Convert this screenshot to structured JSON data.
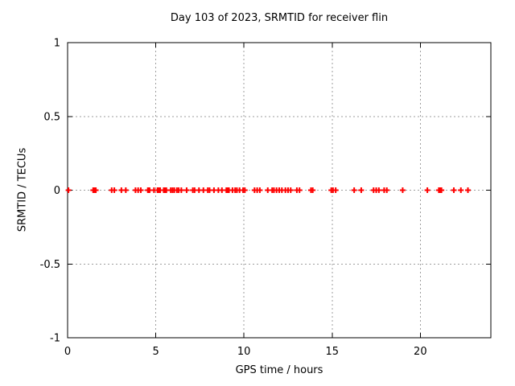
{
  "chart_data": {
    "type": "scatter",
    "title": "Day 103 of 2023, SRMTID for receiver flin",
    "xlabel": "GPS time / hours",
    "ylabel": "SRMTID / TECUs",
    "xlim": [
      0,
      24
    ],
    "ylim": [
      -1,
      1
    ],
    "xticks": [
      0,
      5,
      10,
      15,
      20
    ],
    "yticks": [
      -1,
      -0.5,
      0,
      0.5,
      1
    ],
    "xtick_labels": [
      "0",
      "5",
      "10",
      "15",
      "20"
    ],
    "ytick_labels": [
      "-1",
      "-0.5",
      "0",
      "0.5",
      "1"
    ],
    "grid": true,
    "grid_style": "dashed",
    "grid_color": "#9e9e9e",
    "border_color": "#000000",
    "background_color": "#ffffff",
    "legend": false,
    "series": [
      {
        "name": "SRMTID",
        "marker": "plus",
        "color": "#ff0000",
        "y_value": 0,
        "x": [
          0.05,
          1.45,
          1.5,
          1.55,
          1.6,
          2.5,
          2.65,
          3.05,
          3.3,
          3.85,
          4.0,
          4.15,
          4.55,
          4.6,
          4.65,
          4.9,
          5.1,
          5.15,
          5.2,
          5.25,
          5.45,
          5.5,
          5.55,
          5.6,
          5.85,
          5.95,
          6.05,
          6.2,
          6.3,
          6.45,
          6.75,
          7.1,
          7.2,
          7.45,
          7.7,
          7.95,
          8.05,
          8.3,
          8.55,
          8.75,
          9.0,
          9.05,
          9.1,
          9.15,
          9.35,
          9.5,
          9.6,
          9.75,
          9.95,
          10.05,
          10.6,
          10.75,
          10.9,
          11.35,
          11.6,
          11.7,
          11.85,
          12.0,
          12.15,
          12.35,
          12.5,
          12.65,
          13.0,
          13.15,
          13.8,
          13.9,
          14.95,
          15.05,
          15.2,
          16.25,
          16.65,
          17.35,
          17.5,
          17.65,
          17.95,
          18.1,
          19.0,
          20.4,
          21.05,
          21.1,
          21.15,
          21.2,
          21.9,
          22.3,
          22.7
        ]
      }
    ]
  }
}
